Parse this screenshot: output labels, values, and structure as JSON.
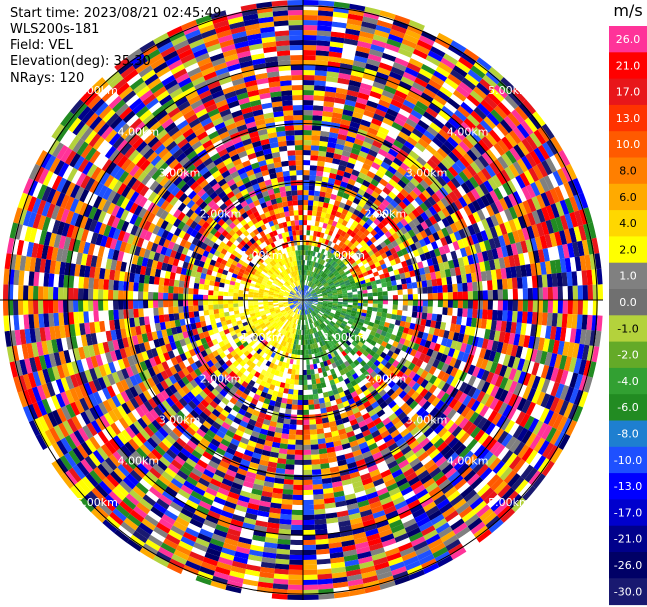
{
  "header": {
    "start_time": "Start time: 2023/08/21 02:45:49",
    "instrument": "WLS200s-181",
    "field": "Field: VEL",
    "elevation": "Elevation(deg): 35.30",
    "nrays": "NRays: 120"
  },
  "colorbar": {
    "unit": "m/s",
    "ticks": [
      "26.0",
      "21.0",
      "17.0",
      "13.0",
      "10.0",
      "8.0",
      "6.0",
      "4.0",
      "2.0",
      "1.0",
      "0.0",
      "-1.0",
      "-2.0",
      "-4.0",
      "-6.0",
      "-8.0",
      "-10.0",
      "-13.0",
      "-17.0",
      "-21.0",
      "-26.0",
      "-30.0"
    ],
    "colors": [
      "#ff3399",
      "#ff0000",
      "#e8161a",
      "#ff3300",
      "#ff5a00",
      "#ff7f00",
      "#ffaa00",
      "#ffd700",
      "#ffff00",
      "#808080",
      "#707070",
      "#b4d23c",
      "#64aa28",
      "#32a032",
      "#228b22",
      "#1e7fd0",
      "#1e50ff",
      "#0000ff",
      "#0000cd",
      "#00008b",
      "#000066",
      "#191970"
    ]
  },
  "chart_data": {
    "type": "ppi",
    "title": "",
    "field": "VEL",
    "unit": "m/s",
    "elevation_deg": 35.3,
    "nrays": 120,
    "range_rings_km": [
      1.0,
      2.0,
      3.0,
      4.0,
      5.0
    ],
    "ring_labels": [
      "1.00km",
      "2.00km",
      "3.00km",
      "4.00km",
      "5.00km"
    ],
    "color_scale": [
      -30.0,
      26.0
    ],
    "description_values": {
      "near_field_green_speed": -6.0,
      "near_field_yellow_speed": 2.0
    }
  }
}
